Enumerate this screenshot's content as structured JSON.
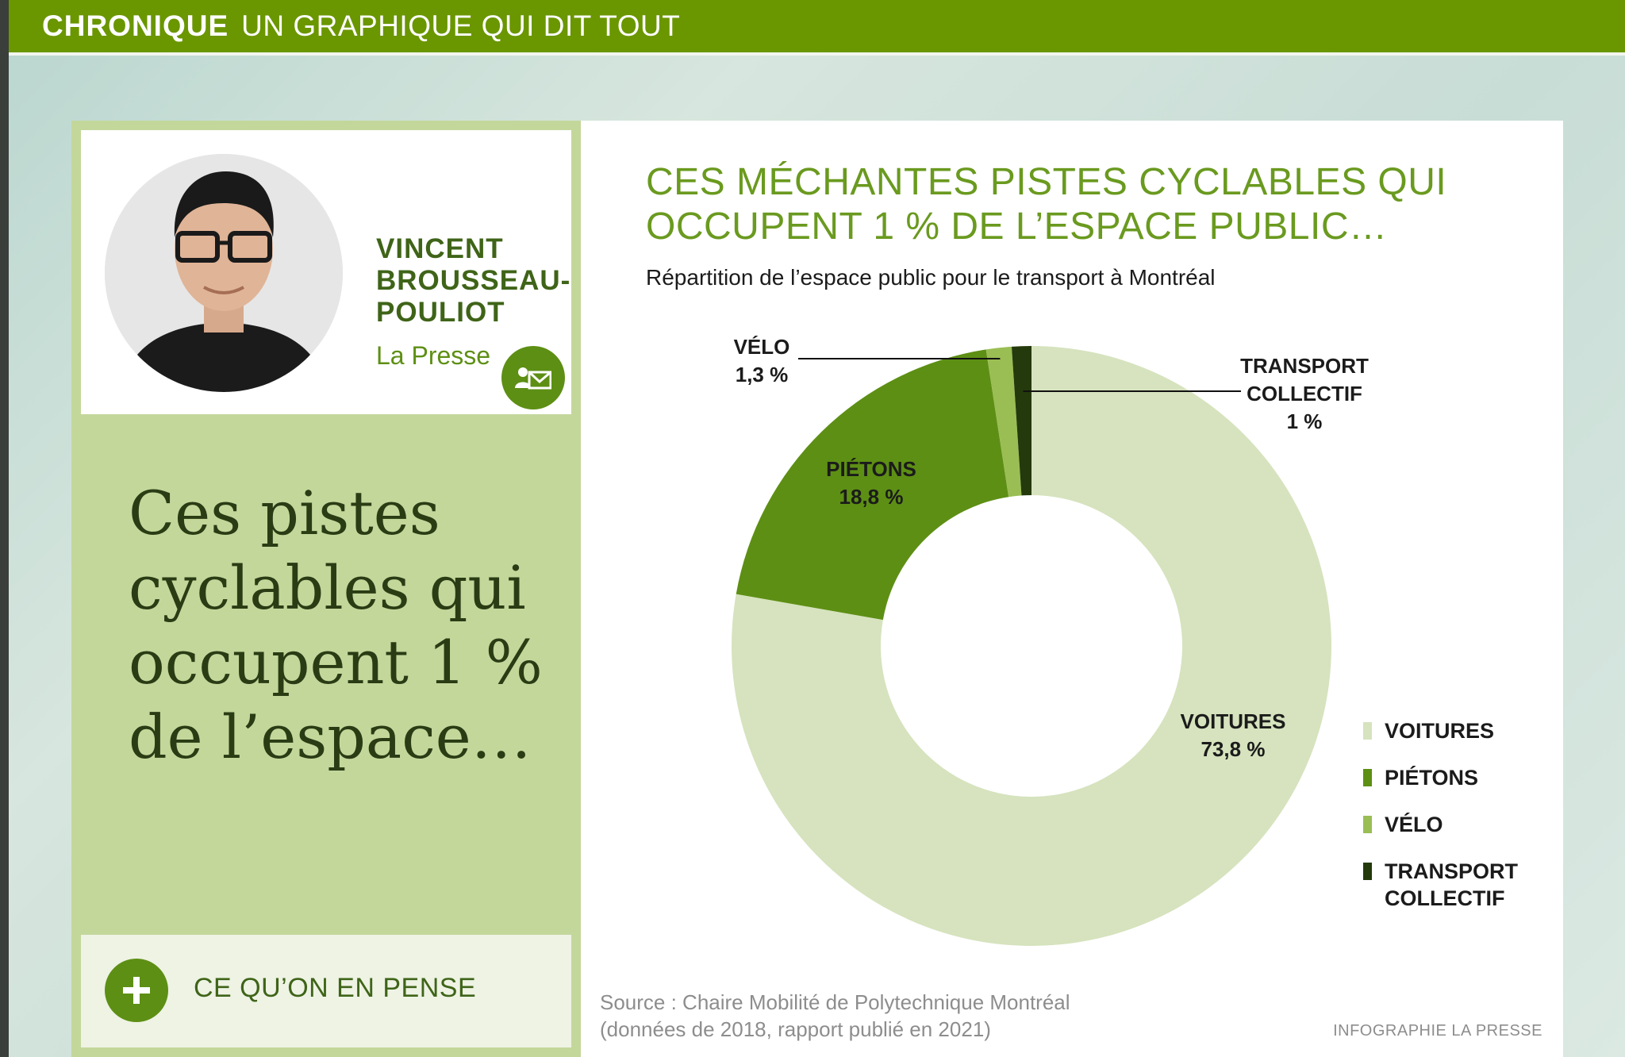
{
  "header": {
    "section": "CHRONIQUE",
    "title": "UN GRAPHIQUE QUI DIT TOUT"
  },
  "author": {
    "name": "VINCENT BROUSSEAU-POULIOT",
    "publication": "La Presse"
  },
  "headline": "Ces pistes cyclables qui occupent 1 % de l’espace…",
  "opinion_link": "CE QU’ON EN PENSE",
  "colors": {
    "voitures": "#d6e3be",
    "pietons": "#5d8f14",
    "velo": "#9abe54",
    "transport": "#243a0c",
    "brand": "#6a9600"
  },
  "chart_data": {
    "type": "pie",
    "title": "CES MÉCHANTES PISTES CYCLABLES QUI OCCUPENT 1 % DE L’ESPACE PUBLIC…",
    "subtitle": "Répartition de l’espace public pour le transport à Montréal",
    "slices": [
      {
        "name": "VOITURES",
        "value": 73.8,
        "label": "73,8 %"
      },
      {
        "name": "PIÉTONS",
        "value": 18.8,
        "label": "18,8 %"
      },
      {
        "name": "VÉLO",
        "value": 1.3,
        "label": "1,3 %"
      },
      {
        "name": "TRANSPORT COLLECTIF",
        "value": 1,
        "label": "1 %"
      }
    ],
    "legend": [
      "VOITURES",
      "PIÉTONS",
      "VÉLO",
      "TRANSPORT COLLECTIF"
    ],
    "legend_position": "bottom-right",
    "source_line1": "Source : Chaire Mobilité de Polytechnique Montréal",
    "source_line2": "(données de 2018, rapport publié en 2021)",
    "credit": "INFOGRAPHIE LA PRESSE"
  }
}
